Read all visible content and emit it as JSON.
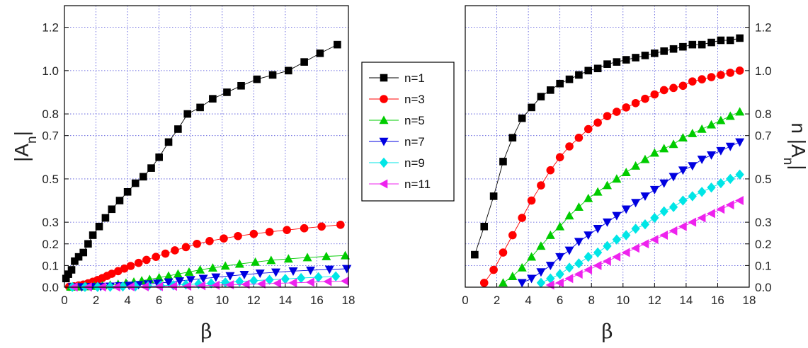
{
  "legend": {
    "placement": "between-panels",
    "entries": [
      {
        "label": "n=1",
        "color": "#000000",
        "marker": "square"
      },
      {
        "label": "n=3",
        "color": "#ff0000",
        "marker": "circle"
      },
      {
        "label": "n=5",
        "color": "#00cc00",
        "marker": "triangle-up"
      },
      {
        "label": "n=7",
        "color": "#0000e0",
        "marker": "triangle-down"
      },
      {
        "label": "n=9",
        "color": "#00e6e6",
        "marker": "diamond"
      },
      {
        "label": "n=11",
        "color": "#ee22ee",
        "marker": "triangle-left"
      }
    ]
  },
  "chart_data": [
    {
      "type": "line",
      "xlabel": "β",
      "ylabel": "|An|",
      "xlim": [
        0,
        18
      ],
      "ylim": [
        0,
        1.3
      ],
      "xticks": [
        0,
        2,
        4,
        6,
        8,
        10,
        12,
        14,
        16,
        18
      ],
      "yticks": [
        0.0,
        0.1,
        0.2,
        0.3,
        0.5,
        0.7,
        0.8,
        1.0,
        1.2
      ],
      "ytick_labels": [
        "0.0",
        "0.1",
        "0.2",
        "0.3",
        "0.5",
        "0.7",
        "0.8",
        "1.0",
        "1.2"
      ],
      "grid": true,
      "series": [
        {
          "name": "n=1",
          "x": [
            0.1,
            0.25,
            0.45,
            0.65,
            0.9,
            1.2,
            1.5,
            1.8,
            2.2,
            2.6,
            3.0,
            3.5,
            4.0,
            4.5,
            5.0,
            5.5,
            6.0,
            6.6,
            7.2,
            7.8,
            8.6,
            9.4,
            10.3,
            11.2,
            12.2,
            13.2,
            14.2,
            15.2,
            16.2,
            17.3
          ],
          "y": [
            0.04,
            0.06,
            0.08,
            0.12,
            0.14,
            0.16,
            0.2,
            0.24,
            0.28,
            0.32,
            0.36,
            0.4,
            0.44,
            0.48,
            0.51,
            0.55,
            0.6,
            0.67,
            0.73,
            0.8,
            0.83,
            0.87,
            0.9,
            0.93,
            0.96,
            0.98,
            1.0,
            1.04,
            1.08,
            1.12
          ]
        },
        {
          "name": "n=3",
          "x": [
            0.3,
            0.6,
            0.9,
            1.2,
            1.5,
            1.8,
            2.1,
            2.4,
            2.7,
            3.0,
            3.4,
            3.8,
            4.2,
            4.7,
            5.2,
            5.8,
            6.4,
            7.0,
            7.7,
            8.4,
            9.2,
            10.1,
            11.0,
            12.0,
            13.0,
            14.1,
            15.2,
            16.3,
            17.5
          ],
          "y": [
            0.002,
            0.004,
            0.008,
            0.012,
            0.018,
            0.025,
            0.033,
            0.042,
            0.052,
            0.062,
            0.074,
            0.086,
            0.098,
            0.112,
            0.126,
            0.14,
            0.155,
            0.17,
            0.185,
            0.2,
            0.213,
            0.225,
            0.236,
            0.246,
            0.255,
            0.264,
            0.272,
            0.28,
            0.288
          ]
        },
        {
          "name": "n=5",
          "x": [
            0.4,
            0.9,
            1.4,
            1.9,
            2.4,
            2.9,
            3.4,
            3.9,
            4.4,
            4.9,
            5.4,
            6.0,
            6.6,
            7.2,
            7.9,
            8.6,
            9.4,
            10.2,
            11.1,
            12.1,
            13.1,
            14.2,
            15.4,
            16.6,
            17.8
          ],
          "y": [
            0.001,
            0.002,
            0.003,
            0.005,
            0.007,
            0.01,
            0.014,
            0.019,
            0.024,
            0.03,
            0.036,
            0.044,
            0.052,
            0.061,
            0.07,
            0.08,
            0.089,
            0.098,
            0.107,
            0.116,
            0.124,
            0.131,
            0.137,
            0.142,
            0.146
          ]
        },
        {
          "name": "n=7",
          "x": [
            0.5,
            1.1,
            1.7,
            2.3,
            2.9,
            3.5,
            4.1,
            4.7,
            5.3,
            5.9,
            6.6,
            7.3,
            8.0,
            8.8,
            9.6,
            10.5,
            11.4,
            12.4,
            13.4,
            14.5,
            15.6,
            16.8,
            17.9
          ],
          "y": [
            0.001,
            0.001,
            0.002,
            0.003,
            0.004,
            0.006,
            0.008,
            0.011,
            0.014,
            0.018,
            0.023,
            0.028,
            0.034,
            0.04,
            0.046,
            0.052,
            0.058,
            0.064,
            0.069,
            0.074,
            0.078,
            0.082,
            0.085
          ]
        },
        {
          "name": "n=9",
          "x": [
            0.5,
            1.3,
            2.1,
            2.9,
            3.7,
            4.5,
            5.3,
            6.1,
            6.9,
            7.7,
            8.5,
            9.3,
            10.2,
            11.1,
            12.0,
            13.0,
            14.0,
            15.0,
            16.1,
            17.2
          ],
          "y": [
            0.001,
            0.001,
            0.001,
            0.002,
            0.003,
            0.004,
            0.005,
            0.007,
            0.009,
            0.012,
            0.015,
            0.018,
            0.022,
            0.026,
            0.03,
            0.034,
            0.038,
            0.042,
            0.046,
            0.05
          ]
        },
        {
          "name": "n=11",
          "x": [
            0.6,
            1.5,
            2.4,
            3.3,
            4.2,
            5.1,
            6.0,
            6.9,
            7.8,
            8.7,
            9.6,
            10.5,
            11.5,
            12.5,
            13.5,
            14.5,
            15.6,
            16.7,
            17.8
          ],
          "y": [
            0.001,
            0.001,
            0.001,
            0.001,
            0.002,
            0.002,
            0.003,
            0.004,
            0.005,
            0.007,
            0.009,
            0.011,
            0.013,
            0.015,
            0.018,
            0.02,
            0.023,
            0.026,
            0.028
          ]
        }
      ]
    },
    {
      "type": "line",
      "xlabel": "β",
      "ylabel": "n |An|",
      "xlim": [
        0,
        18
      ],
      "ylim": [
        0,
        1.3
      ],
      "xticks": [
        0,
        2,
        4,
        6,
        8,
        10,
        12,
        14,
        16,
        18
      ],
      "yticks": [
        0.0,
        0.1,
        0.2,
        0.3,
        0.5,
        0.7,
        0.8,
        1.0,
        1.2
      ],
      "ytick_labels": [
        "0.0",
        "0.1",
        "0.2",
        "0.3",
        "0.5",
        "0.7",
        "0.8",
        "1.0",
        "1.2"
      ],
      "grid": true,
      "series": [
        {
          "name": "n=1",
          "x": [
            0.6,
            1.2,
            1.8,
            2.4,
            3.0,
            3.6,
            4.2,
            4.8,
            5.4,
            6.0,
            6.6,
            7.2,
            7.8,
            8.4,
            9.0,
            9.6,
            10.2,
            10.8,
            11.4,
            12.0,
            12.6,
            13.2,
            13.8,
            14.4,
            15.0,
            15.6,
            16.2,
            16.8,
            17.4
          ],
          "y": [
            0.15,
            0.28,
            0.42,
            0.58,
            0.69,
            0.78,
            0.83,
            0.88,
            0.91,
            0.94,
            0.96,
            0.98,
            1.0,
            1.01,
            1.03,
            1.04,
            1.05,
            1.06,
            1.07,
            1.08,
            1.09,
            1.1,
            1.11,
            1.12,
            1.12,
            1.13,
            1.14,
            1.14,
            1.15
          ]
        },
        {
          "name": "n=3",
          "x": [
            1.2,
            1.8,
            2.4,
            3.0,
            3.6,
            4.2,
            4.8,
            5.4,
            6.0,
            6.6,
            7.2,
            7.8,
            8.4,
            9.0,
            9.6,
            10.2,
            10.8,
            11.4,
            12.0,
            12.6,
            13.2,
            13.8,
            14.4,
            15.0,
            15.6,
            16.2,
            16.8,
            17.4
          ],
          "y": [
            0.02,
            0.08,
            0.16,
            0.24,
            0.32,
            0.4,
            0.47,
            0.54,
            0.6,
            0.65,
            0.69,
            0.73,
            0.76,
            0.79,
            0.81,
            0.83,
            0.85,
            0.87,
            0.89,
            0.91,
            0.92,
            0.93,
            0.95,
            0.96,
            0.97,
            0.98,
            0.99,
            1.0
          ]
        },
        {
          "name": "n=5",
          "x": [
            2.4,
            3.0,
            3.6,
            4.2,
            4.8,
            5.4,
            6.0,
            6.6,
            7.2,
            7.8,
            8.4,
            9.0,
            9.6,
            10.2,
            10.8,
            11.4,
            12.0,
            12.6,
            13.2,
            13.8,
            14.4,
            15.0,
            15.6,
            16.2,
            16.8,
            17.4
          ],
          "y": [
            0.02,
            0.05,
            0.09,
            0.14,
            0.19,
            0.24,
            0.28,
            0.33,
            0.37,
            0.41,
            0.44,
            0.47,
            0.5,
            0.53,
            0.56,
            0.59,
            0.62,
            0.64,
            0.66,
            0.69,
            0.71,
            0.73,
            0.75,
            0.77,
            0.79,
            0.81
          ]
        },
        {
          "name": "n=7",
          "x": [
            3.6,
            4.2,
            4.8,
            5.4,
            6.0,
            6.6,
            7.2,
            7.8,
            8.4,
            9.0,
            9.6,
            10.2,
            10.8,
            11.4,
            12.0,
            12.6,
            13.2,
            13.8,
            14.4,
            15.0,
            15.6,
            16.2,
            16.8,
            17.4
          ],
          "y": [
            0.02,
            0.04,
            0.07,
            0.1,
            0.14,
            0.17,
            0.21,
            0.24,
            0.27,
            0.3,
            0.33,
            0.36,
            0.39,
            0.42,
            0.45,
            0.48,
            0.51,
            0.54,
            0.56,
            0.59,
            0.61,
            0.63,
            0.65,
            0.67
          ]
        },
        {
          "name": "n=9",
          "x": [
            4.8,
            5.4,
            6.0,
            6.6,
            7.2,
            7.8,
            8.4,
            9.0,
            9.6,
            10.2,
            10.8,
            11.4,
            12.0,
            12.6,
            13.2,
            13.8,
            14.4,
            15.0,
            15.6,
            16.2,
            16.8,
            17.4
          ],
          "y": [
            0.02,
            0.04,
            0.06,
            0.09,
            0.11,
            0.14,
            0.16,
            0.19,
            0.22,
            0.24,
            0.27,
            0.29,
            0.32,
            0.35,
            0.37,
            0.4,
            0.42,
            0.44,
            0.46,
            0.48,
            0.5,
            0.52
          ]
        },
        {
          "name": "n=11",
          "x": [
            5.4,
            6.0,
            6.6,
            7.2,
            7.8,
            8.4,
            9.0,
            9.6,
            10.2,
            10.8,
            11.4,
            12.0,
            12.6,
            13.2,
            13.8,
            14.4,
            15.0,
            15.6,
            16.2,
            16.8,
            17.4
          ],
          "y": [
            0.01,
            0.02,
            0.04,
            0.06,
            0.08,
            0.1,
            0.12,
            0.14,
            0.16,
            0.18,
            0.2,
            0.22,
            0.24,
            0.26,
            0.28,
            0.3,
            0.32,
            0.34,
            0.36,
            0.38,
            0.4
          ]
        }
      ]
    }
  ]
}
